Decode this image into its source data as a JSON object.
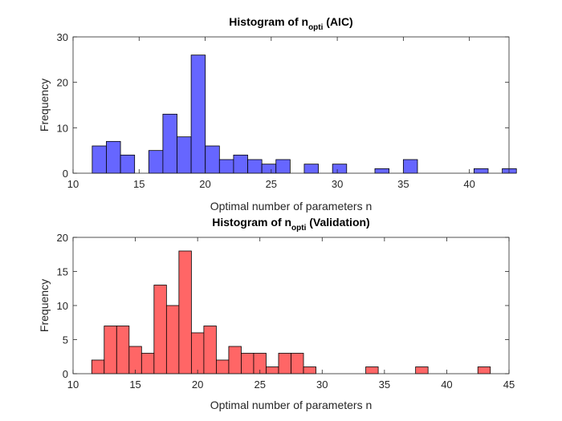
{
  "chart_data": [
    {
      "type": "bar",
      "title": {
        "prefix": "Histogram of n",
        "subscript": "opti",
        "suffix": " (AIC)"
      },
      "xlabel": "Optimal number of parameters n",
      "ylabel": "Frequency",
      "xlim": [
        10,
        43
      ],
      "ylim": [
        0,
        30
      ],
      "xticks": [
        10,
        15,
        20,
        25,
        30,
        35,
        40
      ],
      "yticks": [
        0,
        10,
        20,
        30
      ],
      "bin_width": 1.07,
      "bins": [
        {
          "x0": 11.45,
          "count": 6
        },
        {
          "x0": 12.52,
          "count": 7
        },
        {
          "x0": 13.59,
          "count": 4
        },
        {
          "x0": 15.73,
          "count": 5
        },
        {
          "x0": 16.8,
          "count": 13
        },
        {
          "x0": 17.87,
          "count": 8
        },
        {
          "x0": 18.94,
          "count": 26
        },
        {
          "x0": 20.01,
          "count": 6
        },
        {
          "x0": 21.08,
          "count": 3
        },
        {
          "x0": 22.15,
          "count": 4
        },
        {
          "x0": 23.22,
          "count": 3
        },
        {
          "x0": 24.29,
          "count": 2
        },
        {
          "x0": 25.36,
          "count": 3
        },
        {
          "x0": 27.5,
          "count": 2
        },
        {
          "x0": 29.64,
          "count": 2
        },
        {
          "x0": 32.85,
          "count": 1
        },
        {
          "x0": 35.0,
          "count": 3
        },
        {
          "x0": 40.35,
          "count": 1
        },
        {
          "x0": 42.49,
          "count": 1
        }
      ],
      "fill_color": "#6666ff",
      "edge_color": "#000000"
    },
    {
      "type": "bar",
      "title": {
        "prefix": "Histogram of n",
        "subscript": "opti",
        "suffix": " (Validation)"
      },
      "xlabel": "Optimal number of parameters n",
      "ylabel": "Frequency",
      "xlim": [
        10,
        45
      ],
      "ylim": [
        0,
        20
      ],
      "xticks": [
        10,
        15,
        20,
        25,
        30,
        35,
        40,
        45
      ],
      "yticks": [
        0,
        5,
        10,
        15,
        20
      ],
      "bin_width": 1.0,
      "bins": [
        {
          "x0": 11.5,
          "count": 2
        },
        {
          "x0": 12.5,
          "count": 7
        },
        {
          "x0": 13.5,
          "count": 7
        },
        {
          "x0": 14.5,
          "count": 4
        },
        {
          "x0": 15.5,
          "count": 3
        },
        {
          "x0": 16.5,
          "count": 13
        },
        {
          "x0": 17.5,
          "count": 10
        },
        {
          "x0": 18.5,
          "count": 18
        },
        {
          "x0": 19.5,
          "count": 6
        },
        {
          "x0": 20.5,
          "count": 7
        },
        {
          "x0": 21.5,
          "count": 2
        },
        {
          "x0": 22.5,
          "count": 4
        },
        {
          "x0": 23.5,
          "count": 3
        },
        {
          "x0": 24.5,
          "count": 3
        },
        {
          "x0": 25.5,
          "count": 1
        },
        {
          "x0": 26.5,
          "count": 3
        },
        {
          "x0": 27.5,
          "count": 3
        },
        {
          "x0": 28.5,
          "count": 1
        },
        {
          "x0": 33.5,
          "count": 1
        },
        {
          "x0": 37.5,
          "count": 1
        },
        {
          "x0": 42.5,
          "count": 1
        }
      ],
      "fill_color": "#ff6666",
      "edge_color": "#000000"
    }
  ]
}
